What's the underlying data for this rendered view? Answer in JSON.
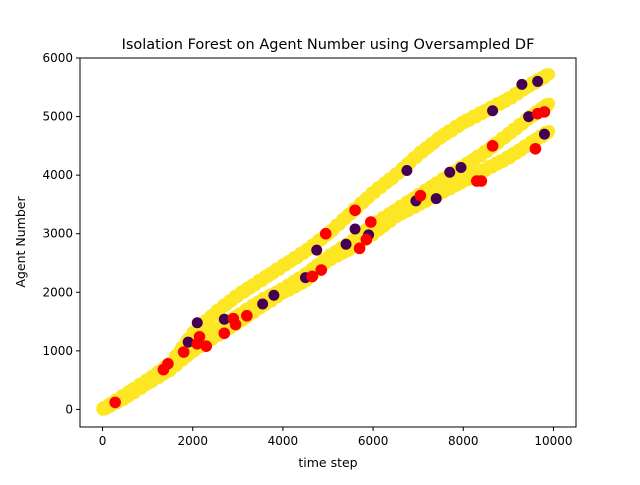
{
  "chart_data": {
    "type": "scatter",
    "title": "Isolation Forest on Agent Number using Oversampled DF",
    "xlabel": "time step",
    "ylabel": "Agent Number",
    "xlim": [
      -500,
      10500
    ],
    "ylim": [
      -300,
      6000
    ],
    "xticks": [
      0,
      2000,
      4000,
      6000,
      8000,
      10000
    ],
    "yticks": [
      0,
      1000,
      2000,
      3000,
      4000,
      5000,
      6000
    ],
    "grid": false,
    "colors": {
      "inlier": "#fde725",
      "outlier": "#440154",
      "highlight": "#ff0000"
    },
    "series": [
      {
        "trace": "upper",
        "x": [
          0,
          500,
          1000,
          1500,
          2000,
          2500,
          3000,
          3500,
          4000,
          4500,
          5000,
          5500,
          6000,
          6500,
          7000,
          7500,
          8000,
          8500,
          9000,
          9500,
          9900
        ],
        "y": [
          0,
          250,
          500,
          780,
          1300,
          1650,
          1950,
          2200,
          2450,
          2700,
          3000,
          3350,
          3700,
          4000,
          4350,
          4650,
          4900,
          5100,
          5300,
          5550,
          5720
        ]
      },
      {
        "trace": "middle",
        "x": [
          0,
          500,
          1000,
          1500,
          2000,
          2500,
          3000,
          3500,
          4000,
          4500,
          5000,
          5500,
          6000,
          6500,
          7000,
          7500,
          8000,
          8500,
          9000,
          9500,
          9900
        ],
        "y": [
          0,
          230,
          480,
          720,
          1050,
          1350,
          1600,
          1850,
          2050,
          2300,
          2600,
          2850,
          3150,
          3400,
          3650,
          3900,
          4150,
          4400,
          4700,
          5000,
          5220
        ]
      },
      {
        "trace": "lower",
        "x": [
          0,
          500,
          1000,
          1500,
          2000,
          2500,
          3000,
          3500,
          4000,
          4500,
          5000,
          5500,
          6000,
          6500,
          7000,
          7500,
          8000,
          8500,
          9000,
          9500,
          9900
        ],
        "y": [
          0,
          200,
          450,
          680,
          1000,
          1250,
          1480,
          1750,
          2000,
          2200,
          2550,
          2750,
          3000,
          3300,
          3500,
          3700,
          3900,
          4100,
          4300,
          4550,
          4750
        ]
      }
    ],
    "outliers": [
      [
        2100,
        1480
      ],
      [
        2700,
        1540
      ],
      [
        3800,
        1950
      ],
      [
        4500,
        2250
      ],
      [
        4750,
        2720
      ],
      [
        5400,
        2820
      ],
      [
        5600,
        3080
      ],
      [
        5900,
        2980
      ],
      [
        6750,
        4080
      ],
      [
        6950,
        3560
      ],
      [
        7400,
        3600
      ],
      [
        7700,
        4050
      ],
      [
        7950,
        4130
      ],
      [
        8650,
        5100
      ],
      [
        9300,
        5550
      ],
      [
        9450,
        5000
      ],
      [
        9650,
        5600
      ],
      [
        9800,
        4700
      ],
      [
        1900,
        1150
      ],
      [
        3550,
        1800
      ]
    ],
    "highlighted": [
      [
        280,
        120
      ],
      [
        1350,
        680
      ],
      [
        1450,
        780
      ],
      [
        1800,
        980
      ],
      [
        2100,
        1120
      ],
      [
        2150,
        1240
      ],
      [
        2300,
        1080
      ],
      [
        2700,
        1300
      ],
      [
        2900,
        1550
      ],
      [
        2950,
        1450
      ],
      [
        3200,
        1600
      ],
      [
        4650,
        2270
      ],
      [
        4850,
        2380
      ],
      [
        4950,
        3000
      ],
      [
        5600,
        3400
      ],
      [
        5700,
        2750
      ],
      [
        5850,
        2900
      ],
      [
        5950,
        3200
      ],
      [
        7050,
        3650
      ],
      [
        8300,
        3900
      ],
      [
        8400,
        3900
      ],
      [
        8650,
        4500
      ],
      [
        9600,
        4450
      ],
      [
        9650,
        5050
      ],
      [
        9800,
        5080
      ]
    ]
  }
}
